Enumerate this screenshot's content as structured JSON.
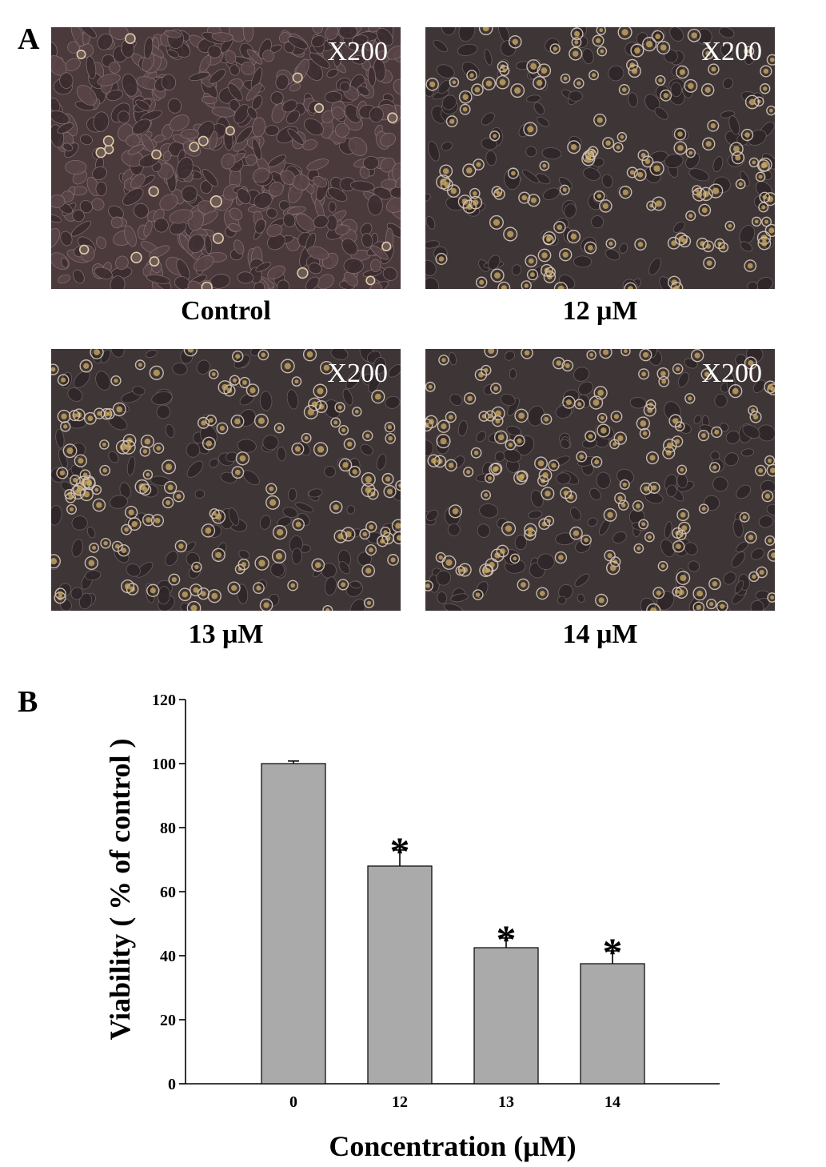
{
  "panel_a": {
    "letter": "A",
    "images": [
      {
        "caption": "Control",
        "magnification": "X200",
        "cell_style": "confluent"
      },
      {
        "caption": "12 μM",
        "magnification": "X200",
        "cell_style": "sparse"
      },
      {
        "caption": "13 μM",
        "magnification": "X200",
        "cell_style": "sparse"
      },
      {
        "caption": "14 μM",
        "magnification": "X200",
        "cell_style": "sparse"
      }
    ]
  },
  "panel_b": {
    "letter": "B"
  },
  "chart_data": {
    "type": "bar",
    "categories": [
      "0",
      "12",
      "13",
      "14"
    ],
    "values": [
      100,
      68,
      42.5,
      37.5
    ],
    "error": [
      0.8,
      5,
      3,
      4
    ],
    "significant": [
      false,
      true,
      true,
      true
    ],
    "significance_marker": "*",
    "ylabel": "Viability ( % of control )",
    "xlabel": "Concentration (μM)",
    "ylim": [
      0,
      120
    ],
    "yticks": [
      0,
      20,
      40,
      60,
      80,
      100,
      120
    ],
    "bar_color": "#aaaaaa",
    "grid": false
  }
}
